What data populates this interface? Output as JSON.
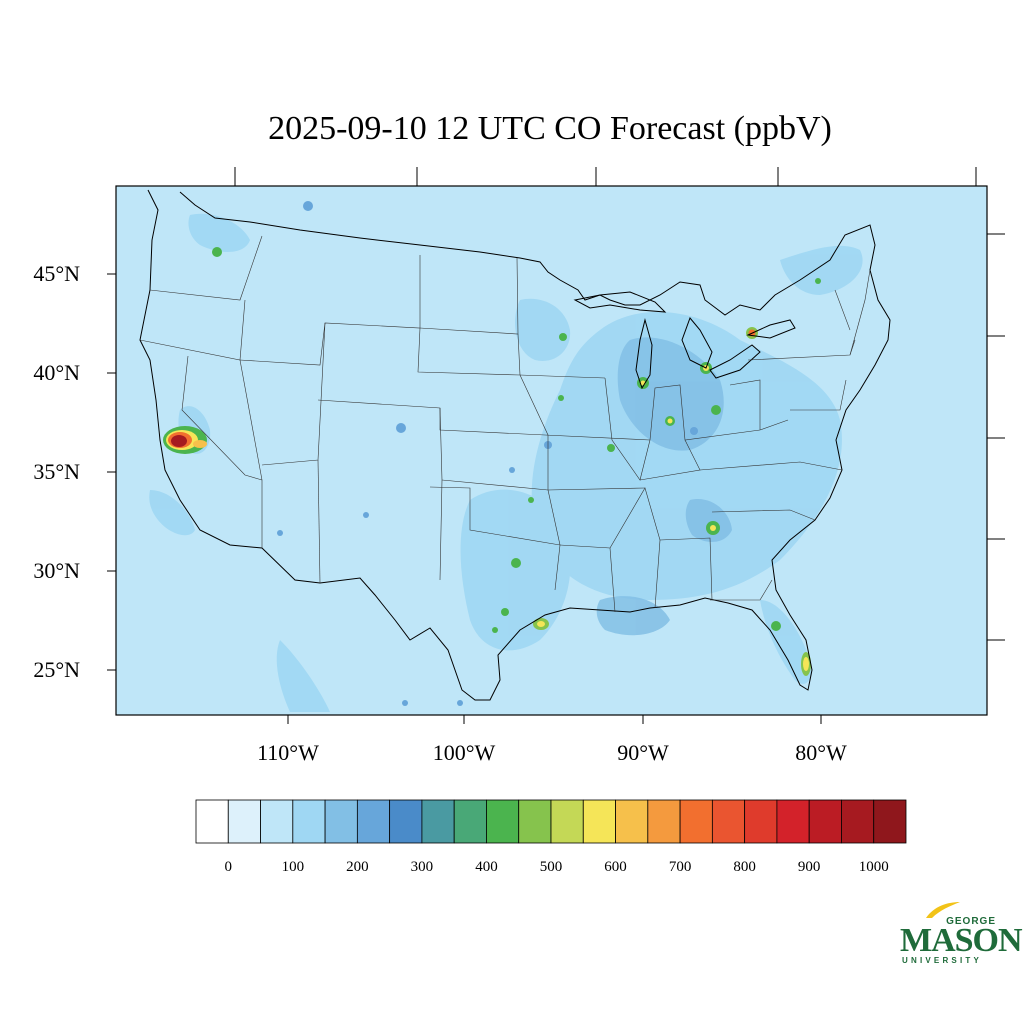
{
  "title": "2025-09-10 12 UTC CO Forecast (ppbV)",
  "lat_labels": [
    "45°N",
    "40°N",
    "35°N",
    "30°N",
    "25°N"
  ],
  "lon_labels": [
    "110°W",
    "100°W",
    "90°W",
    "80°W"
  ],
  "colorbar": {
    "labels": [
      "0",
      "100",
      "200",
      "300",
      "400",
      "500",
      "600",
      "700",
      "800",
      "900",
      "1000"
    ],
    "colors": [
      "#ffffff",
      "#ddf1fb",
      "#bfe6f8",
      "#9fd7f3",
      "#82bfe5",
      "#67a6da",
      "#4a8bc9",
      "#4a9aa2",
      "#49a877",
      "#4bb44e",
      "#86c34d",
      "#c4d856",
      "#f5e558",
      "#f6c04b",
      "#f49a3e",
      "#f26f2f",
      "#ea5530",
      "#df3b2c",
      "#d3222a",
      "#bb1c24",
      "#a61a20",
      "#8f171c"
    ]
  },
  "logo": {
    "line1": "GEORGE",
    "line2": "MASON",
    "line3": "UNIVERSITY"
  },
  "colors": {
    "background_field": "#bfe6f8",
    "elevated_field": "#9fd7f3",
    "border_line": "#000000"
  }
}
